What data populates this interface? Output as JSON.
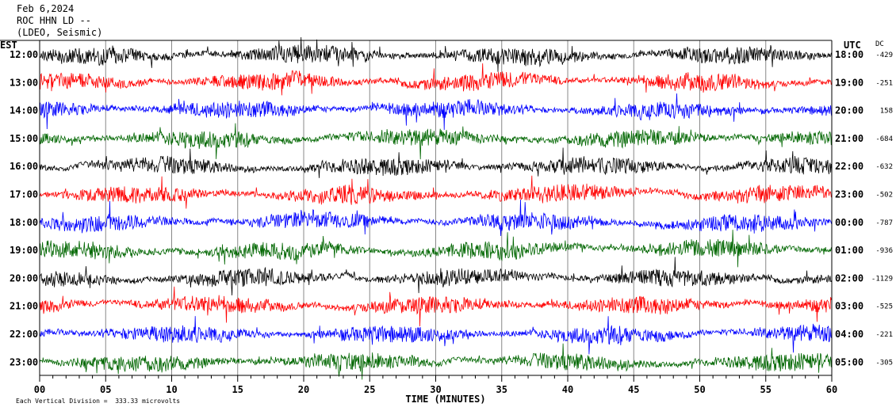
{
  "header": {
    "date": "Feb 6,2024",
    "station": "ROC HHN LD --",
    "network": "(LDEO, Seismic)"
  },
  "chart_data": {
    "type": "line",
    "xlabel": "TIME (MINUTES)",
    "xlim": [
      0,
      60
    ],
    "x_ticks": [
      "00",
      "05",
      "10",
      "15",
      "20",
      "25",
      "30",
      "35",
      "40",
      "45",
      "50",
      "55",
      "60"
    ],
    "left_axis_title": "EST",
    "right_axis_title": "UTC",
    "dc_title": "DC",
    "grid": "vertical lines every 5 minutes",
    "rows": [
      {
        "est": "12:00",
        "utc": "18:00",
        "dc": "-429",
        "color": "#000000"
      },
      {
        "est": "13:00",
        "utc": "19:00",
        "dc": "-251",
        "color": "#ff0000"
      },
      {
        "est": "14:00",
        "utc": "20:00",
        "dc": "158",
        "color": "#0000ff"
      },
      {
        "est": "15:00",
        "utc": "21:00",
        "dc": "-684",
        "color": "#006600"
      },
      {
        "est": "16:00",
        "utc": "22:00",
        "dc": "-632",
        "color": "#000000"
      },
      {
        "est": "17:00",
        "utc": "23:00",
        "dc": "-502",
        "color": "#ff0000"
      },
      {
        "est": "18:00",
        "utc": "00:00",
        "dc": "-787",
        "color": "#0000ff"
      },
      {
        "est": "19:00",
        "utc": "01:00",
        "dc": "-936",
        "color": "#006600"
      },
      {
        "est": "20:00",
        "utc": "02:00",
        "dc": "-1129",
        "color": "#000000"
      },
      {
        "est": "21:00",
        "utc": "03:00",
        "dc": "-525",
        "color": "#ff0000"
      },
      {
        "est": "22:00",
        "utc": "04:00",
        "dc": "-221",
        "color": "#0000ff"
      },
      {
        "est": "23:00",
        "utc": "05:00",
        "dc": "-305",
        "color": "#006600"
      }
    ],
    "footnote": "Each Vertical Division =  333.33 microvolts"
  }
}
